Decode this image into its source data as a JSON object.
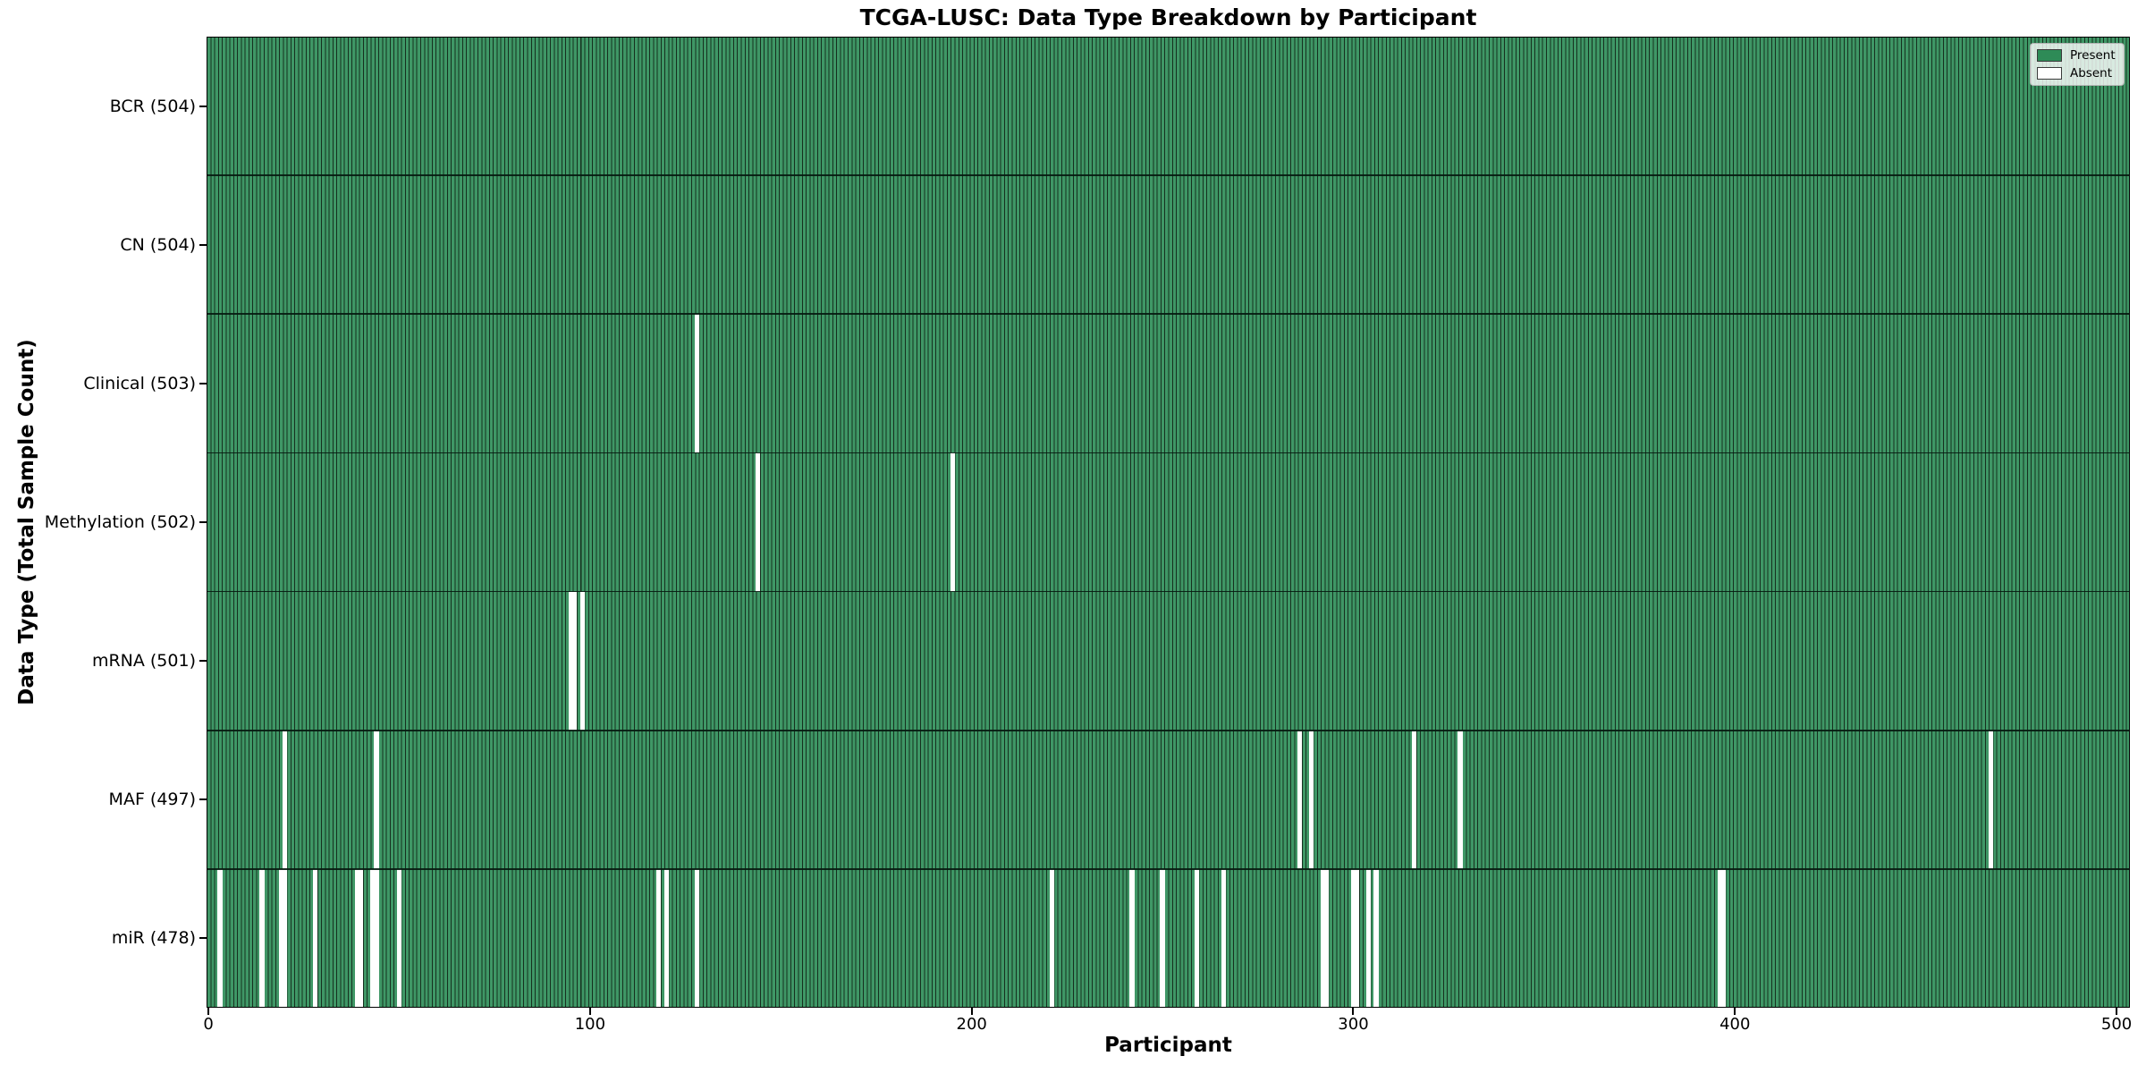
{
  "title": "TCGA-LUSC: Data Type Breakdown by Participant",
  "chart_data": {
    "type": "heatmap",
    "title": "TCGA-LUSC: Data Type Breakdown by Participant",
    "xlabel": "Participant",
    "ylabel": "Data Type (Total Sample Count)",
    "x_ticks": [
      0,
      100,
      200,
      300,
      400,
      500
    ],
    "xlim": [
      -0.5,
      503.5
    ],
    "n_participants": 504,
    "grid": false,
    "legend": {
      "position": "upper right",
      "entries": [
        {
          "label": "Present",
          "color": "#2e8b57"
        },
        {
          "label": "Absent",
          "color": "#ffffff"
        }
      ]
    },
    "rows": [
      {
        "label": "BCR",
        "total": 504,
        "display": "BCR (504)",
        "absent_participants": []
      },
      {
        "label": "CN",
        "total": 504,
        "display": "CN (504)",
        "absent_participants": []
      },
      {
        "label": "Clinical",
        "total": 503,
        "display": "Clinical (503)",
        "absent_participants": [
          128
        ]
      },
      {
        "label": "Methylation",
        "total": 502,
        "display": "Methylation (502)",
        "absent_participants": [
          144,
          195
        ]
      },
      {
        "label": "mRNA",
        "total": 501,
        "display": "mRNA (501)",
        "absent_participants": [
          95,
          96,
          98
        ]
      },
      {
        "label": "MAF",
        "total": 497,
        "display": "MAF (497)",
        "absent_participants": [
          20,
          44,
          286,
          289,
          316,
          328,
          467
        ]
      },
      {
        "label": "miR",
        "total": 478,
        "display": "miR (478)",
        "absent_participants": [
          3,
          14,
          19,
          20,
          28,
          39,
          40,
          43,
          44,
          50,
          118,
          120,
          128,
          221,
          242,
          250,
          259,
          266,
          292,
          293,
          300,
          301,
          304,
          306,
          396,
          397
        ]
      }
    ],
    "colors": {
      "present_fill": "#3f9766",
      "bar_edge": "#16301f",
      "absent": "#ffffff",
      "background": "#ffffff"
    }
  }
}
